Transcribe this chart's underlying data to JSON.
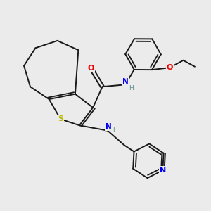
{
  "background_color": "#ebebeb",
  "bond_color": "#1a1a1a",
  "atom_colors": {
    "S": "#b8b800",
    "N": "#0000ee",
    "O": "#ee0000",
    "C": "#1a1a1a",
    "H": "#5a9090"
  }
}
